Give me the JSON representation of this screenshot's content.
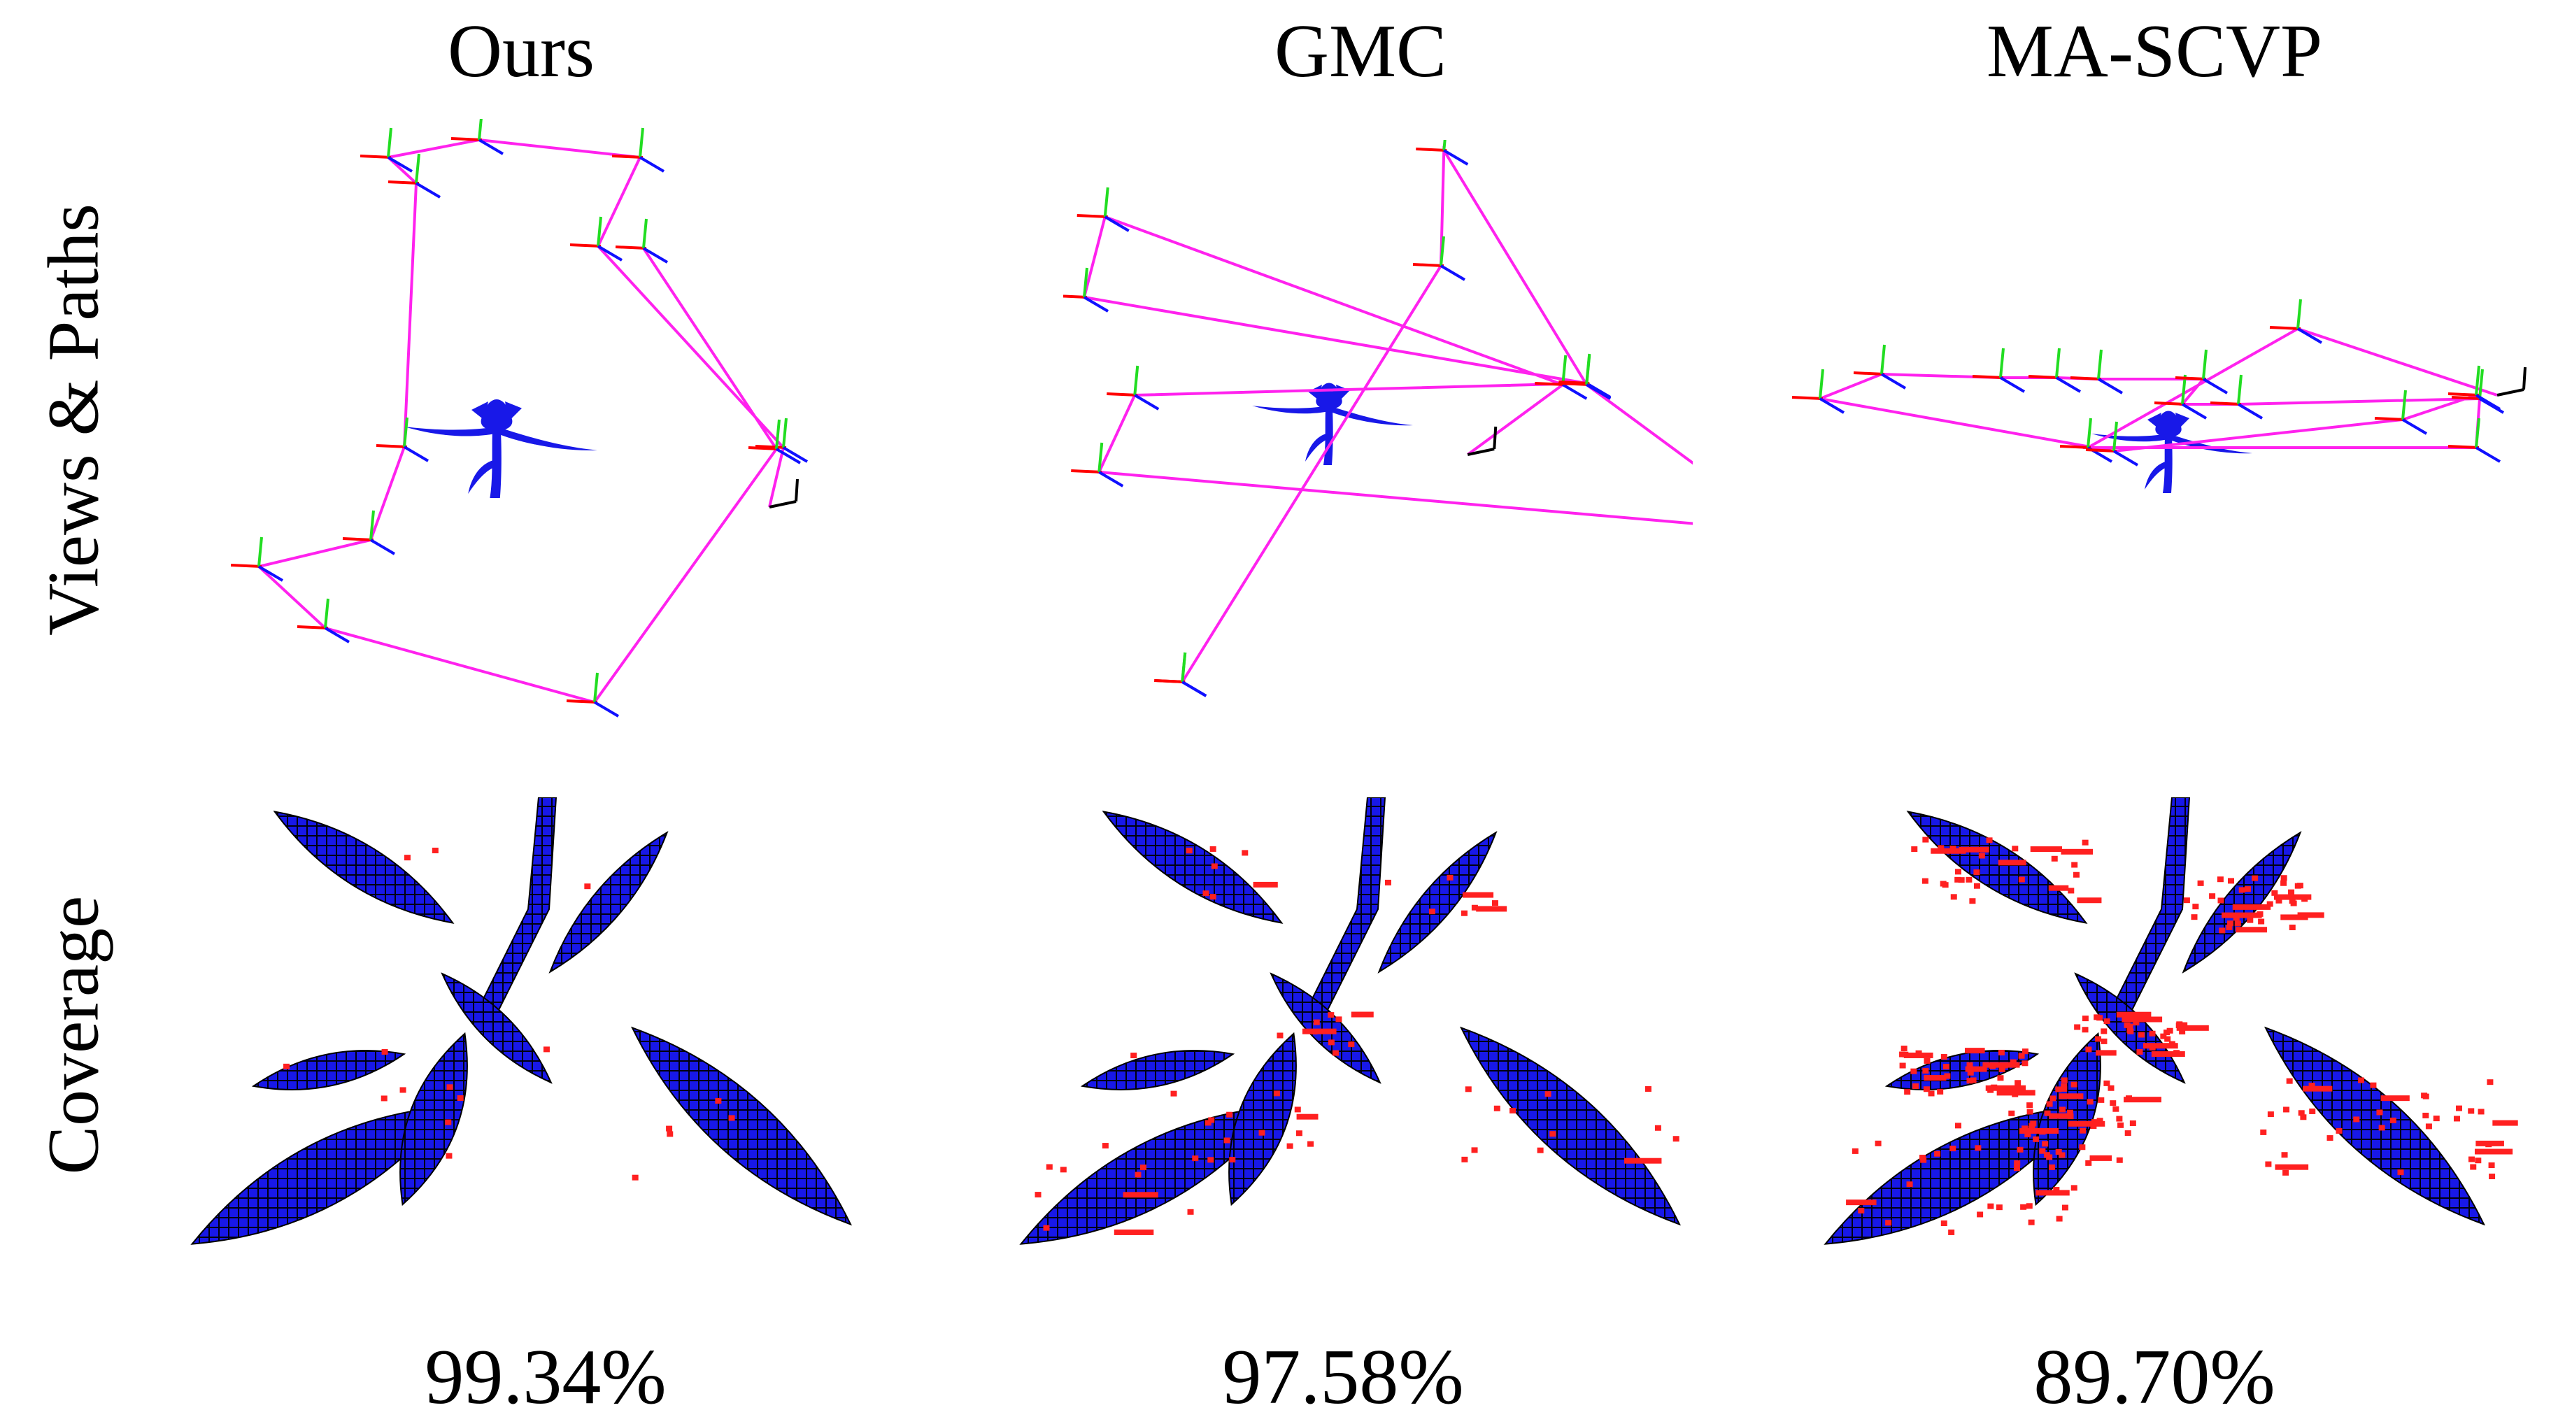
{
  "columns": [
    {
      "title": "Ours",
      "coverage": "99.34%"
    },
    {
      "title": "GMC",
      "coverage": "97.58%"
    },
    {
      "title": "MA-SCVP",
      "coverage": "89.70%"
    }
  ],
  "rows": {
    "views_label": "Views & Paths",
    "coverage_label": "Coverage"
  },
  "colors": {
    "path": "#ff22ee",
    "plant": "#1818e8",
    "missing": "#ff2020",
    "axis_x": "#ff0000",
    "axis_y": "#22dd22",
    "axis_z": "#1010ff"
  },
  "coverage_fraction": [
    0.9934,
    0.9758,
    0.897
  ]
}
